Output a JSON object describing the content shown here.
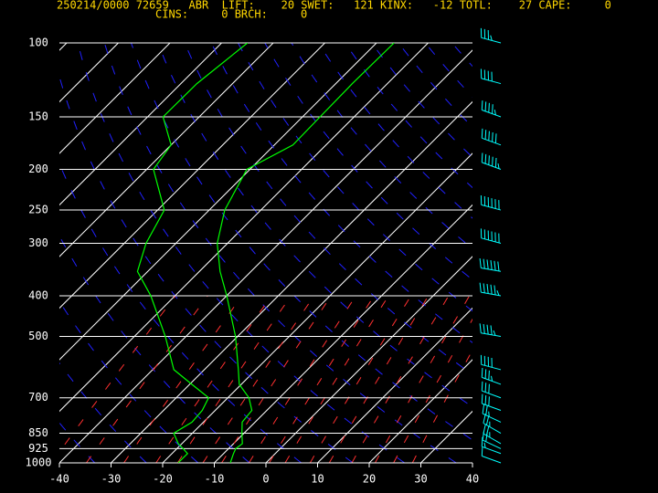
{
  "chart_data": {
    "type": "skewt",
    "title": "250214/0000 72659   ABR  LIFT:    20 SWET:   121 KINX:   -12 TOTL:    27 CAPE:     0",
    "subtitle": "CINS:     0 BRCH:     0",
    "xlim": [
      -40,
      40
    ],
    "xticks": [
      -40,
      -30,
      -20,
      -10,
      0,
      10,
      20,
      30,
      40
    ],
    "ylim": [
      1000,
      100
    ],
    "log_y": true,
    "yticks": [
      100,
      150,
      200,
      250,
      300,
      400,
      500,
      700,
      850,
      925,
      1000
    ],
    "pressure": [
      1000,
      950,
      925,
      900,
      850,
      800,
      750,
      700,
      650,
      600,
      500,
      400,
      350,
      300,
      250,
      200,
      175,
      150,
      125,
      100
    ],
    "series": [
      {
        "color": "#00ff00",
        "values": [
          -6.9,
          -8.1,
          -8.6,
          -8.3,
          -10.4,
          -12.5,
          -12.9,
          -15.9,
          -20.4,
          -23.4,
          -30.4,
          -40,
          -46,
          -52,
          -57,
          -60.6,
          -56.4,
          -56.6,
          -56.8,
          -56.6
        ]
      },
      {
        "color": "#00ff00",
        "values": [
          -17,
          -17,
          -18.8,
          -20.7,
          -23.6,
          -22.2,
          -22.5,
          -23.7,
          -29.6,
          -35.9,
          -44,
          -54.7,
          -62,
          -65.8,
          -68.7,
          -78.7,
          -80,
          -87,
          -86.9,
          -85
        ]
      }
    ],
    "wind": {
      "color": "#00ffff",
      "direction": [
        290,
        290,
        295,
        300,
        300,
        295,
        290,
        290,
        290,
        285,
        280,
        280,
        280,
        285,
        285,
        290,
        290,
        290,
        285,
        285
      ],
      "speed": [
        10,
        15,
        20,
        25,
        25,
        25,
        30,
        30,
        35,
        40,
        45,
        55,
        60,
        60,
        60,
        55,
        50,
        45,
        40,
        35
      ]
    }
  }
}
